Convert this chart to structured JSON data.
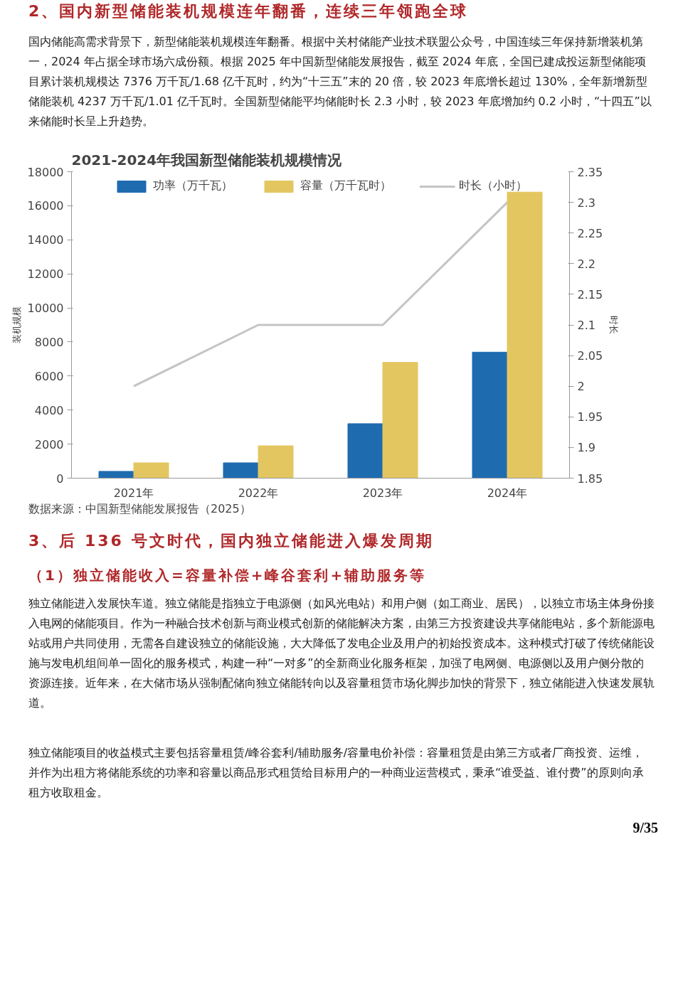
{
  "chart_data": {
    "type": "bar",
    "title": "2021-2024年我国新型储能装机规模情况",
    "categories": [
      "2021年",
      "2022年",
      "2023年",
      "2024年"
    ],
    "series": [
      {
        "name": "功率（万千瓦）",
        "color": "#1f6bb0",
        "values": [
          400,
          900,
          3200,
          7400
        ]
      },
      {
        "name": "容量（万千瓦时）",
        "color": "#e3c660",
        "values": [
          900,
          1900,
          6800,
          16800
        ]
      },
      {
        "name": "时长（小时）",
        "color": "#c4c4c4",
        "type": "line",
        "axis": "y2",
        "values": [
          2,
          2.1,
          2.1,
          2.3
        ]
      }
    ],
    "ylabel": "装机规模",
    "y2label": "时长",
    "ylim": [
      0,
      18000
    ],
    "yticks": [
      0,
      2000,
      4000,
      6000,
      8000,
      10000,
      12000,
      14000,
      16000,
      18000
    ],
    "y2lim": [
      1.85,
      2.35
    ],
    "y2ticks": [
      1.85,
      1.9,
      1.95,
      2,
      2.05,
      2.1,
      2.15,
      2.2,
      2.25,
      2.3,
      2.35
    ],
    "grid": false,
    "legend": "top",
    "line_style": "solid",
    "annotations": [
      "2、国内新型储能装机规模连年翻番，连续三年领跑全球",
      "国内储能高需求背景下，新型储能装机规模连年翻番。根据中关村储能产业技术联盟公众号，中国连续三年保持新增装机第一，2024 年占据全球市场六成份额。根据 2025 年中国新型储能发展报告，截至 2024 年底，全国已建成投运新型储能项目累计装机规模达 7376 万千瓦/1.68 亿千瓦时，约为“十三五”末的 20 倍，较 2023 年底增长超过 130%，全年新增新型储能装机 4237 万千瓦/1.01 亿千瓦时。全国新型储能平均储能时长 2.3 小时，较 2023 年底增加约 0.2 小时，“十四五”以来储能时长呈上升趋势。",
      "数据来源：中国新型储能发展报告（2025）",
      "3、后 136 号文时代，国内独立储能进入爆发周期",
      "（1）独立储能收入=容量补偿+峰谷套利+辅助服务等",
      "独立储能进入发展快车道。独立储能是指独立于电源侧（如风光电站）和用户侧（如工商业、居民），以独立市场主体身份接入电网的储能项目。作为一种融合技术创新与商业模式创新的储能解决方案，由第三方投资建设共享储能电站，多个新能源电站或用户共同使用，无需各自建设独立的储能设施，大大降低了发电企业及用户的初始投资成本。这种模式打破了传统储能设施与发电机组间单一固化的服务模式，构建一种“一对多”的全新商业化服务框架，加强了电网侧、电源侧以及用户侧分散的资源连接。近年来，在大储市场从强制配储向独立储能转向以及容量租赁市场化脚步加快的背景下，独立储能进入快速发展轨道。",
      "独立储能项目的收益模式主要包括容量租赁/峰谷套利/辅助服务/容量电价补偿：容量租赁是由第三方或者厂商投资、运维，并作为出租方将储能系统的功率和容量以商品形式租赁给目标用户的一种商业运营模式，秉承“谁受益、谁付费”的原则向承租方收取租金。",
      "9/35"
    ]
  }
}
